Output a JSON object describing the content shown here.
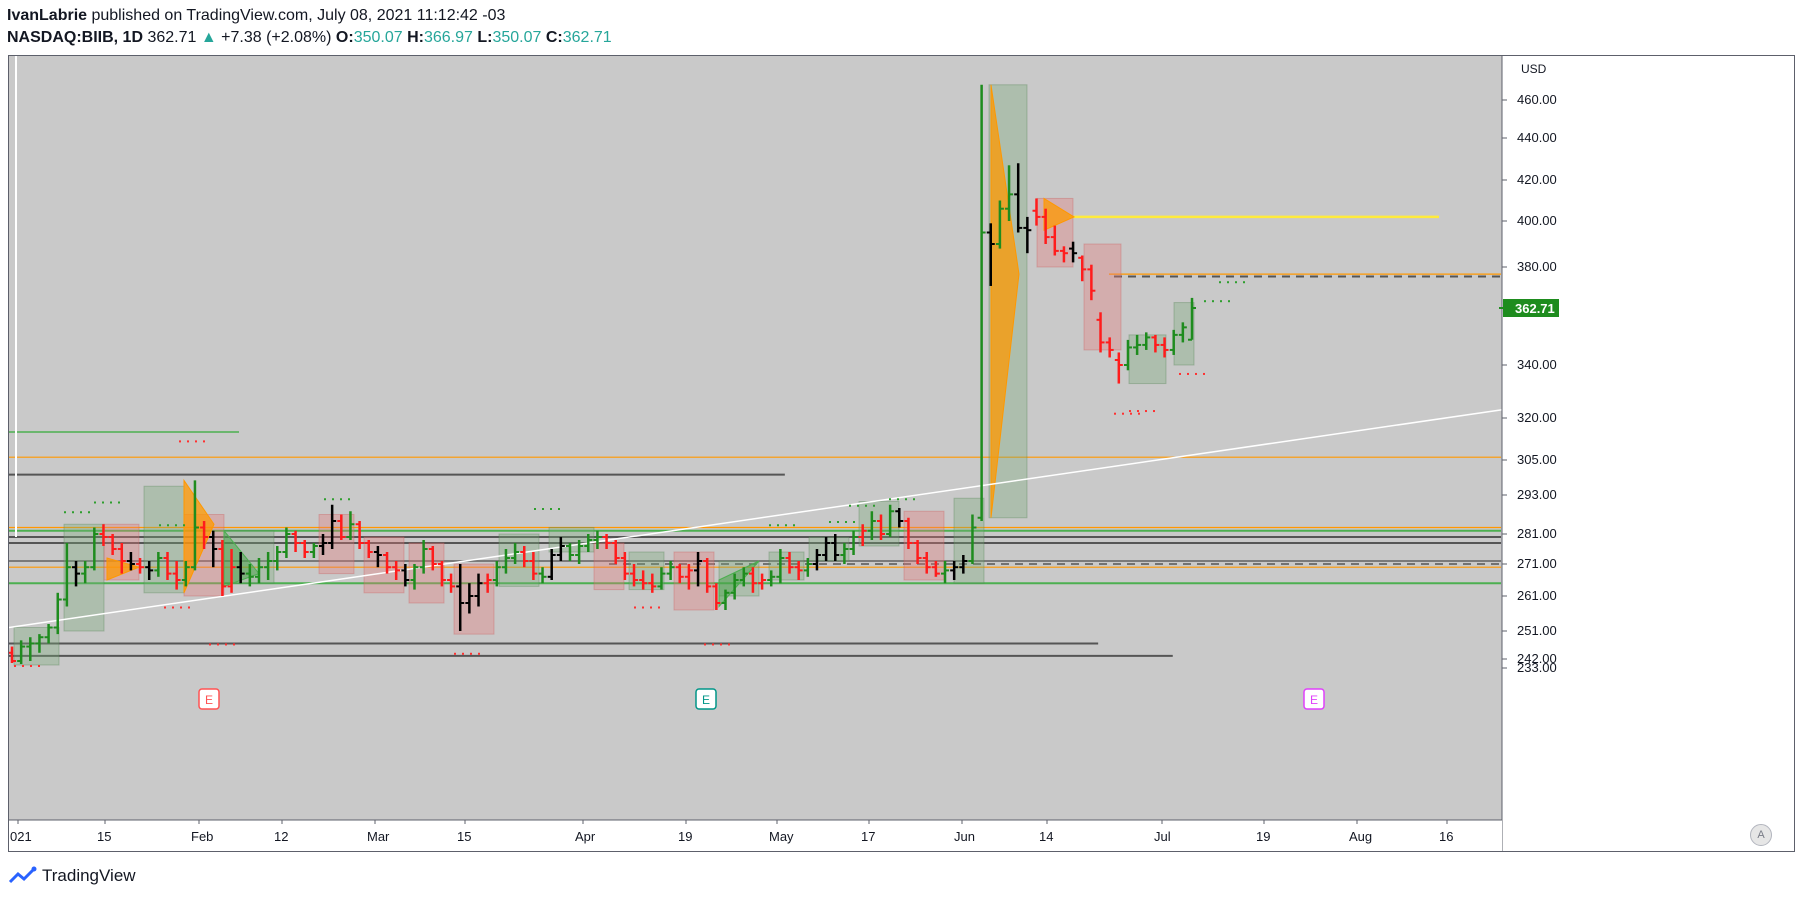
{
  "header": {
    "publisher_name": "IvanLabrie",
    "published_text": "published on TradingView.com, July 08, 2021 11:12:42 -03",
    "symbol_interval": "NASDAQ:BIIB, 1D",
    "last_price": "362.71",
    "change_arrow": "▲",
    "change_text": "+7.38 (+2.08%)",
    "open_label": "O:",
    "open_value": "350.07",
    "high_label": "H:",
    "high_value": "366.97",
    "low_label": "L:",
    "low_value": "350.07",
    "close_label": "C:",
    "close_value": "362.71"
  },
  "price_axis": {
    "currency": "USD",
    "ticks": [
      "460.00",
      "440.00",
      "420.00",
      "400.00",
      "380.00",
      "340.00",
      "320.00",
      "305.00",
      "293.00",
      "281.00",
      "271.00",
      "261.00",
      "251.00",
      "242.00",
      "233.00"
    ],
    "current_price_label": "362.71"
  },
  "time_axis": {
    "labels": [
      "021",
      "15",
      "Feb",
      "12",
      "Mar",
      "15",
      "Apr",
      "19",
      "May",
      "17",
      "Jun",
      "14",
      "Jul",
      "19",
      "Aug",
      "16"
    ]
  },
  "earnings_markers": [
    "E",
    "E",
    "E"
  ],
  "auto_button_label": "A",
  "footer": {
    "brand": "TradingView"
  },
  "colors": {
    "bull": "#1e8c1e",
    "bear": "#ff1c1c",
    "neutral": "#000000",
    "price_label_bg": "#1e8c1e",
    "chart_bg": "#c9c9c9",
    "support_line": "#ff9800",
    "trend_line": "#ffffff"
  },
  "chart_data": {
    "type": "ohlc",
    "symbol": "NASDAQ:BIIB",
    "interval": "1D",
    "ylim": [
      230,
      468
    ],
    "ticks": [
      460,
      440,
      420,
      400,
      380,
      340,
      320,
      305,
      293,
      281,
      271,
      261,
      251,
      242,
      233
    ],
    "current_price": 362.71,
    "bars": [
      [
        244,
        246,
        238,
        240,
        "bear"
      ],
      [
        240,
        248,
        237,
        246,
        "bull"
      ],
      [
        246,
        249,
        240,
        247,
        "bull"
      ],
      [
        247,
        250,
        244,
        249,
        "bull"
      ],
      [
        249,
        253,
        247,
        252,
        "bull"
      ],
      [
        252,
        262,
        250,
        260,
        "bull"
      ],
      [
        260,
        278,
        258,
        270,
        "bull"
      ],
      [
        270,
        272,
        264,
        268,
        "neutral"
      ],
      [
        268,
        272,
        265,
        270,
        "bull"
      ],
      [
        270,
        283,
        269,
        281,
        "bull"
      ],
      [
        281,
        284,
        277,
        280,
        "bear"
      ],
      [
        280,
        281,
        274,
        276,
        "bear"
      ],
      [
        276,
        278,
        268,
        272,
        "bear"
      ],
      [
        272,
        275,
        269,
        271,
        "neutral"
      ],
      [
        271,
        273,
        268,
        270,
        "bear"
      ],
      [
        270,
        272,
        266,
        269,
        "neutral"
      ],
      [
        269,
        275,
        267,
        273,
        "bull"
      ],
      [
        273,
        275,
        266,
        268,
        "bear"
      ],
      [
        268,
        272,
        263,
        266,
        "bear"
      ],
      [
        266,
        272,
        264,
        270,
        "bull"
      ],
      [
        270,
        298,
        269,
        283,
        "bull"
      ],
      [
        283,
        285,
        276,
        280,
        "bear"
      ],
      [
        280,
        282,
        270,
        276,
        "neutral"
      ],
      [
        276,
        279,
        261,
        264,
        "bear"
      ],
      [
        264,
        276,
        262,
        270,
        "bear"
      ],
      [
        270,
        275,
        265,
        268,
        "neutral"
      ],
      [
        268,
        271,
        264,
        267,
        "bull"
      ],
      [
        267,
        273,
        265,
        270,
        "bull"
      ],
      [
        270,
        275,
        266,
        272,
        "bull"
      ],
      [
        272,
        277,
        269,
        275,
        "bull"
      ],
      [
        275,
        283,
        273,
        281,
        "bull"
      ],
      [
        281,
        282,
        275,
        278,
        "bear"
      ],
      [
        278,
        279,
        273,
        275,
        "bear"
      ],
      [
        275,
        278,
        273,
        277,
        "bull"
      ],
      [
        277,
        281,
        274,
        278,
        "neutral"
      ],
      [
        278,
        290,
        276,
        285,
        "neutral"
      ],
      [
        285,
        287,
        279,
        280,
        "bear"
      ],
      [
        280,
        288,
        279,
        284,
        "bull"
      ],
      [
        284,
        285,
        276,
        278,
        "bear"
      ],
      [
        278,
        279,
        273,
        275,
        "bear"
      ],
      [
        275,
        277,
        270,
        274,
        "neutral"
      ],
      [
        274,
        275,
        268,
        270,
        "bear"
      ],
      [
        270,
        272,
        266,
        269,
        "bear"
      ],
      [
        269,
        271,
        264,
        266,
        "neutral"
      ],
      [
        266,
        271,
        263,
        270,
        "bull"
      ],
      [
        270,
        279,
        268,
        276,
        "bull"
      ],
      [
        276,
        277,
        269,
        271,
        "bear"
      ],
      [
        271,
        272,
        264,
        266,
        "bear"
      ],
      [
        266,
        268,
        262,
        264,
        "bear"
      ],
      [
        264,
        271,
        251,
        259,
        "neutral"
      ],
      [
        259,
        265,
        256,
        261,
        "neutral"
      ],
      [
        261,
        268,
        258,
        265,
        "neutral"
      ],
      [
        265,
        268,
        262,
        266,
        "bear"
      ],
      [
        266,
        272,
        264,
        270,
        "bull"
      ],
      [
        270,
        276,
        268,
        273,
        "bull"
      ],
      [
        273,
        278,
        271,
        275,
        "bull"
      ],
      [
        275,
        277,
        270,
        272,
        "bear"
      ],
      [
        272,
        275,
        266,
        268,
        "bear"
      ],
      [
        268,
        270,
        265,
        267,
        "bull"
      ],
      [
        267,
        276,
        266,
        274,
        "neutral"
      ],
      [
        274,
        280,
        272,
        277,
        "neutral"
      ],
      [
        277,
        278,
        272,
        274,
        "bull"
      ],
      [
        274,
        279,
        271,
        277,
        "bull"
      ],
      [
        277,
        281,
        275,
        279,
        "bull"
      ],
      [
        279,
        282,
        276,
        280,
        "bull"
      ],
      [
        280,
        281,
        276,
        278,
        "bear"
      ],
      [
        278,
        279,
        271,
        273,
        "bear"
      ],
      [
        273,
        275,
        266,
        268,
        "bear"
      ],
      [
        268,
        271,
        264,
        266,
        "bear"
      ],
      [
        266,
        269,
        263,
        265,
        "bear"
      ],
      [
        265,
        268,
        262,
        264,
        "bear"
      ],
      [
        264,
        270,
        263,
        268,
        "bull"
      ],
      [
        268,
        272,
        266,
        270,
        "bull"
      ],
      [
        270,
        271,
        265,
        267,
        "bear"
      ],
      [
        267,
        271,
        263,
        269,
        "bear"
      ],
      [
        269,
        275,
        264,
        272,
        "neutral"
      ],
      [
        272,
        273,
        262,
        264,
        "bear"
      ],
      [
        264,
        265,
        257,
        259,
        "bear"
      ],
      [
        259,
        263,
        257,
        262,
        "bull"
      ],
      [
        262,
        268,
        260,
        266,
        "bull"
      ],
      [
        266,
        270,
        264,
        268,
        "bull"
      ],
      [
        268,
        270,
        262,
        265,
        "bear"
      ],
      [
        265,
        268,
        263,
        266,
        "bear"
      ],
      [
        266,
        269,
        264,
        267,
        "bull"
      ],
      [
        267,
        276,
        265,
        273,
        "bull"
      ],
      [
        273,
        275,
        268,
        270,
        "bear"
      ],
      [
        270,
        272,
        266,
        269,
        "bear"
      ],
      [
        269,
        273,
        267,
        271,
        "bull"
      ],
      [
        271,
        276,
        269,
        274,
        "neutral"
      ],
      [
        274,
        280,
        272,
        278,
        "neutral"
      ],
      [
        278,
        281,
        272,
        274,
        "neutral"
      ],
      [
        274,
        278,
        271,
        276,
        "bull"
      ],
      [
        276,
        282,
        274,
        280,
        "bull"
      ],
      [
        280,
        284,
        277,
        282,
        "bear"
      ],
      [
        282,
        288,
        279,
        285,
        "bull"
      ],
      [
        285,
        287,
        279,
        281,
        "bear"
      ],
      [
        281,
        290,
        280,
        288,
        "bull"
      ],
      [
        288,
        289,
        283,
        285,
        "neutral"
      ],
      [
        285,
        286,
        276,
        278,
        "bear"
      ],
      [
        278,
        279,
        271,
        273,
        "bear"
      ],
      [
        273,
        275,
        268,
        270,
        "bear"
      ],
      [
        270,
        272,
        267,
        268,
        "bear"
      ],
      [
        268,
        272,
        265,
        269,
        "bull"
      ],
      [
        269,
        272,
        266,
        270,
        "neutral"
      ],
      [
        270,
        274,
        268,
        272,
        "neutral"
      ],
      [
        272,
        287,
        271,
        283,
        "bull"
      ],
      [
        286,
        468,
        285,
        395,
        "bull"
      ],
      [
        395,
        399,
        372,
        390,
        "neutral"
      ],
      [
        390,
        410,
        388,
        406,
        "bull"
      ],
      [
        406,
        427,
        400,
        413,
        "bull"
      ],
      [
        413,
        428,
        395,
        397,
        "neutral"
      ],
      [
        397,
        402,
        386,
        396,
        "neutral"
      ],
      [
        405,
        411,
        398,
        402,
        "bear"
      ],
      [
        402,
        406,
        390,
        393,
        "bear"
      ],
      [
        393,
        398,
        385,
        387,
        "bear"
      ],
      [
        387,
        389,
        382,
        386,
        "bear"
      ],
      [
        388,
        391,
        382,
        386,
        "neutral"
      ],
      [
        384,
        385,
        374,
        379,
        "bear"
      ],
      [
        379,
        381,
        366,
        370,
        "bear"
      ],
      [
        358,
        361,
        345,
        349,
        "bear"
      ],
      [
        349,
        351,
        343,
        346,
        "bear"
      ],
      [
        342,
        345,
        333,
        340,
        "bear"
      ],
      [
        340,
        350,
        338,
        347,
        "bull"
      ],
      [
        347,
        352,
        344,
        348,
        "bull"
      ],
      [
        348,
        353,
        346,
        351,
        "bull"
      ],
      [
        351,
        352,
        345,
        348,
        "bear"
      ],
      [
        348,
        351,
        343,
        346,
        "bear"
      ],
      [
        346,
        354,
        344,
        352,
        "bull"
      ],
      [
        352,
        357,
        349,
        355,
        "bull"
      ],
      [
        350.07,
        366.97,
        350.07,
        362.71,
        "bull"
      ]
    ]
  }
}
